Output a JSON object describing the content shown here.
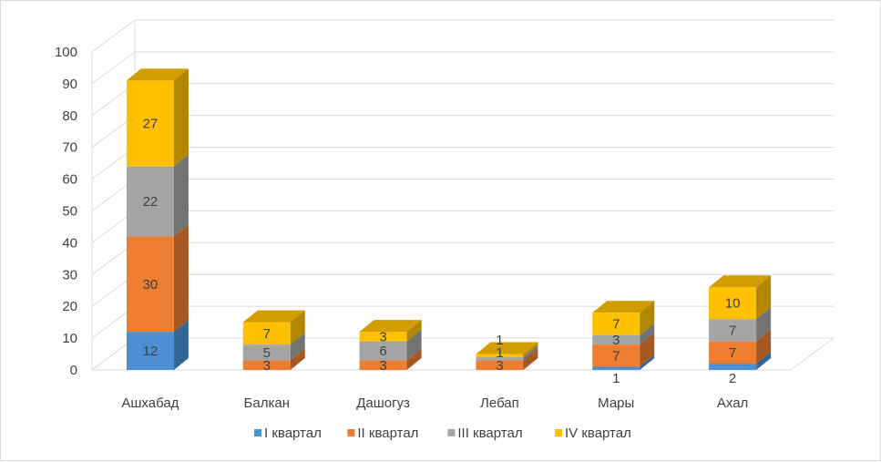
{
  "chart_data": {
    "type": "bar",
    "stacked": true,
    "style": "3d",
    "categories": [
      "Ашхабад",
      "Балкан",
      "Дашогуз",
      "Лебап",
      "Мары",
      "Ахал"
    ],
    "series": [
      {
        "name": "I квартал",
        "values": [
          12,
          0,
          0,
          0,
          1,
          2
        ],
        "color": "#4a90d2"
      },
      {
        "name": "II квартал",
        "values": [
          30,
          3,
          3,
          3,
          7,
          7
        ],
        "color": "#ed7d31"
      },
      {
        "name": "III квартал",
        "values": [
          22,
          5,
          6,
          1,
          3,
          7
        ],
        "color": "#a5a5a5"
      },
      {
        "name": "IV квартал",
        "values": [
          27,
          7,
          3,
          1,
          7,
          10
        ],
        "color": "#ffc000"
      }
    ],
    "data_labels": [
      [
        "12",
        "",
        "",
        "",
        "1",
        "2"
      ],
      [
        "30",
        "3",
        "3",
        "3",
        "7",
        "7"
      ],
      [
        "22",
        "5",
        "6",
        "1",
        "3",
        "7"
      ],
      [
        "27",
        "7",
        "3",
        "1",
        "7",
        "10"
      ]
    ],
    "y_ticks": [
      "0",
      "10",
      "20",
      "30",
      "40",
      "50",
      "60",
      "70",
      "80",
      "90",
      "100"
    ],
    "ylim": [
      0,
      100
    ],
    "grid": true,
    "legend_position": "bottom",
    "title": "",
    "xlabel": "",
    "ylabel": ""
  }
}
